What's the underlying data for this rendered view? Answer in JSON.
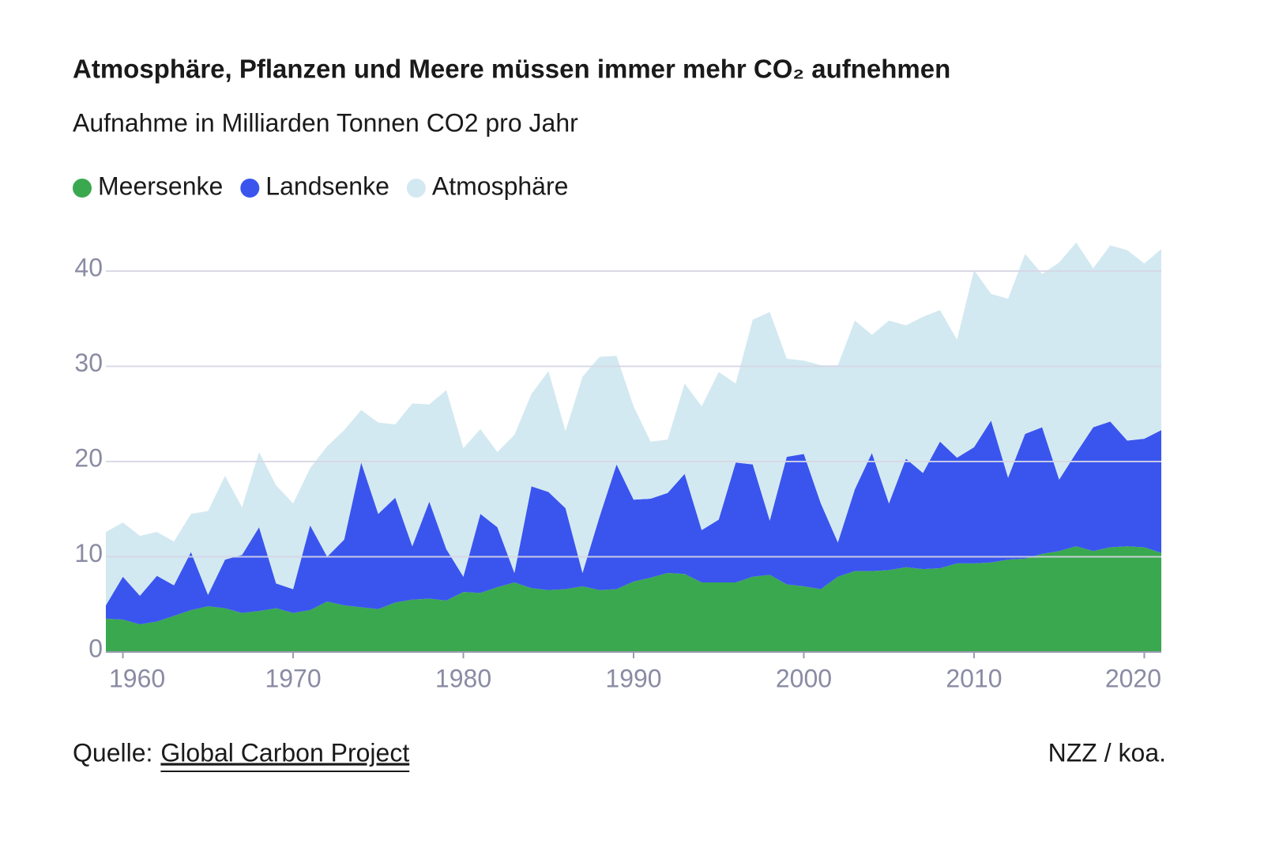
{
  "chart_data": {
    "type": "area",
    "title": "Atmosphäre, Pflanzen und Meere müssen immer mehr CO₂ aufnehmen",
    "subtitle": "Aufnahme in Milliarden Tonnen CO2 pro Jahr",
    "source_label": "Quelle:",
    "source_link": "Global Carbon Project",
    "credit": "NZZ / koa.",
    "stacked": true,
    "grid": true,
    "x": [
      1959,
      1960,
      1961,
      1962,
      1963,
      1964,
      1965,
      1966,
      1967,
      1968,
      1969,
      1970,
      1971,
      1972,
      1973,
      1974,
      1975,
      1976,
      1977,
      1978,
      1979,
      1980,
      1981,
      1982,
      1983,
      1984,
      1985,
      1986,
      1987,
      1988,
      1989,
      1990,
      1991,
      1992,
      1993,
      1994,
      1995,
      1996,
      1997,
      1998,
      1999,
      2000,
      2001,
      2002,
      2003,
      2004,
      2005,
      2006,
      2007,
      2008,
      2009,
      2010,
      2011,
      2012,
      2013,
      2014,
      2015,
      2016,
      2017,
      2018,
      2019,
      2020,
      2021
    ],
    "series": [
      {
        "name": "Meersenke",
        "color": "#3aa84f",
        "values": [
          3.5,
          3.4,
          2.9,
          3.2,
          3.8,
          4.4,
          4.8,
          4.6,
          4.1,
          4.3,
          4.6,
          4.1,
          4.4,
          5.3,
          4.9,
          4.7,
          4.5,
          5.2,
          5.5,
          5.6,
          5.4,
          6.3,
          6.2,
          6.8,
          7.3,
          6.7,
          6.5,
          6.6,
          6.9,
          6.5,
          6.6,
          7.4,
          7.8,
          8.3,
          8.2,
          7.3,
          7.3,
          7.3,
          7.9,
          8.1,
          7.1,
          6.9,
          6.6,
          7.9,
          8.5,
          8.5,
          8.6,
          8.9,
          8.7,
          8.8,
          9.3,
          9.3,
          9.4,
          9.7,
          9.8,
          10.3,
          10.6,
          11.1,
          10.6,
          11.0,
          11.1,
          11.0,
          10.4
        ]
      },
      {
        "name": "Landsenke",
        "color": "#3a55ee",
        "values": [
          1.4,
          4.5,
          3.0,
          4.8,
          3.2,
          6.1,
          1.2,
          5.1,
          6.1,
          8.8,
          2.6,
          2.5,
          8.9,
          4.7,
          6.9,
          15.2,
          10.0,
          11.0,
          5.6,
          10.2,
          5.4,
          1.6,
          8.3,
          6.3,
          1.0,
          10.7,
          10.3,
          8.5,
          1.4,
          7.7,
          13.1,
          8.6,
          8.3,
          8.4,
          10.5,
          5.5,
          6.6,
          12.6,
          11.8,
          5.7,
          13.4,
          13.9,
          9.0,
          3.6,
          8.6,
          12.4,
          7.0,
          11.4,
          10.1,
          13.3,
          11.1,
          12.2,
          14.9,
          8.6,
          13.1,
          13.3,
          7.5,
          9.8,
          13.0,
          13.2,
          11.1,
          11.4,
          12.9
        ]
      },
      {
        "name": "Atmosphäre",
        "color": "#d3e9f1",
        "values": [
          7.7,
          5.7,
          6.3,
          4.6,
          4.6,
          4.0,
          8.8,
          8.8,
          5.0,
          7.9,
          10.3,
          9.0,
          6.0,
          11.6,
          11.5,
          5.5,
          9.6,
          7.7,
          15.0,
          10.2,
          16.7,
          13.5,
          8.9,
          7.9,
          14.5,
          9.7,
          12.7,
          8.1,
          20.6,
          16.8,
          11.4,
          9.8,
          6.0,
          5.6,
          9.5,
          13.0,
          15.5,
          8.3,
          15.2,
          21.9,
          10.3,
          9.8,
          14.5,
          18.6,
          17.7,
          12.4,
          19.2,
          14.0,
          16.4,
          13.8,
          12.4,
          18.6,
          13.3,
          18.8,
          18.9,
          16.1,
          22.8,
          22.1,
          16.7,
          18.5,
          20.0,
          18.4,
          19.0
        ]
      }
    ],
    "xlim": [
      1959,
      2021
    ],
    "xticks": [
      1960,
      1970,
      1980,
      1990,
      2000,
      2010,
      2020
    ],
    "ylim": [
      0,
      44
    ],
    "yticks": [
      0,
      10,
      20,
      30,
      40
    ]
  }
}
